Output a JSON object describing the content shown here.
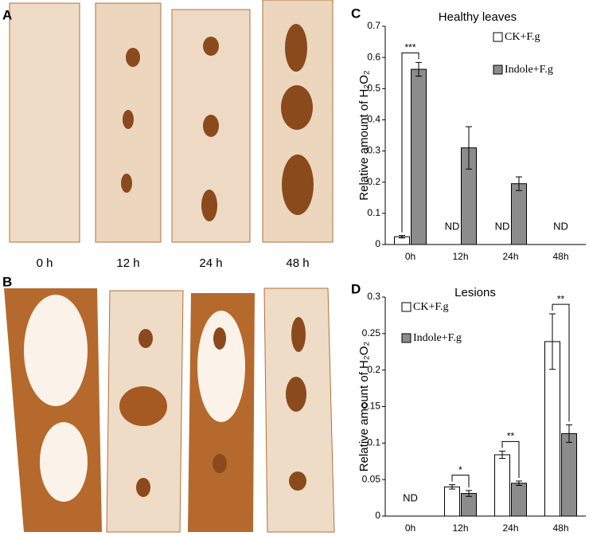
{
  "panel_labels": {
    "a": "A",
    "b": "B"
  },
  "photo_times": [
    "0 h",
    "12 h",
    "24 h",
    "48 h"
  ],
  "chart_data": [
    {
      "type": "bar",
      "panel_label": "C",
      "title": "Healthy leaves",
      "ylabel": "Relative amount of H₂O₂",
      "categories": [
        "0h",
        "12h",
        "24h",
        "48h"
      ],
      "series": [
        {
          "name": "CK+F.g",
          "color": "#ffffff",
          "values": [
            0.025,
            null,
            null,
            null
          ],
          "errors": [
            0.004,
            null,
            null,
            null
          ],
          "value_labels": [
            null,
            "ND",
            "ND",
            "ND"
          ]
        },
        {
          "name": "Indole+F.g",
          "color": "#8c8c8c",
          "values": [
            0.562,
            0.31,
            0.195,
            null
          ],
          "errors": [
            0.022,
            0.068,
            0.022,
            null
          ],
          "value_labels": [
            null,
            null,
            null,
            null
          ]
        }
      ],
      "significance": [
        "***",
        null,
        null,
        null
      ],
      "ylim": [
        0,
        0.7
      ],
      "yticks": [
        0,
        0.1,
        0.2,
        0.3,
        0.4,
        0.5,
        0.6,
        0.7
      ]
    },
    {
      "type": "bar",
      "panel_label": "D",
      "title": "Lesions",
      "ylabel": "Relative amount of H₂O₂",
      "categories": [
        "0h",
        "12h",
        "24h",
        "48h"
      ],
      "series": [
        {
          "name": "CK+F.g",
          "color": "#ffffff",
          "values": [
            null,
            0.04,
            0.084,
            0.239
          ],
          "errors": [
            null,
            0.003,
            0.005,
            0.038
          ],
          "value_labels": [
            "ND",
            null,
            null,
            null
          ]
        },
        {
          "name": "Indole+F.g",
          "color": "#8c8c8c",
          "values": [
            null,
            0.031,
            0.045,
            0.113
          ],
          "errors": [
            null,
            0.004,
            0.003,
            0.012
          ],
          "value_labels": [
            null,
            null,
            null,
            null
          ]
        }
      ],
      "significance": [
        null,
        "*",
        "**",
        "**"
      ],
      "ylim": [
        0,
        0.3
      ],
      "yticks": [
        0,
        0.05,
        0.1,
        0.15,
        0.2,
        0.25,
        0.3
      ]
    }
  ]
}
